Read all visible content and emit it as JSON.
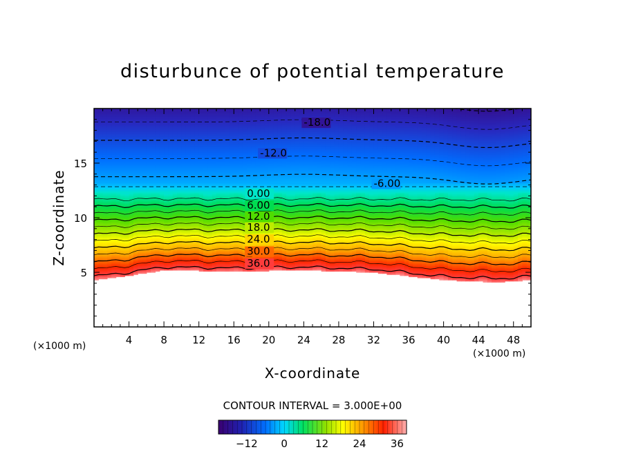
{
  "chart_data": {
    "type": "contour",
    "title": "disturbunce of potential temperature",
    "xlabel": "X-coordinate",
    "ylabel": "Z-coordinate",
    "x_unit": "(×1000 m)",
    "z_unit": "(×1000 m)",
    "xlim": [
      0,
      50
    ],
    "zlim": [
      0,
      20
    ],
    "x_ticks": [
      4,
      8,
      12,
      16,
      20,
      24,
      28,
      32,
      36,
      40,
      44,
      48
    ],
    "z_ticks": [
      5,
      10,
      15
    ],
    "contour_interval_text": "CONTOUR INTERVAL = 3.000E+00",
    "contour_interval": 3.0,
    "colorbar": {
      "range": [
        -21,
        39
      ],
      "ticks": [
        -12,
        0,
        12,
        24,
        36
      ]
    },
    "contour_labels": [
      {
        "text": "-18.0",
        "value": -18,
        "x": 24,
        "z": 18.6
      },
      {
        "text": "-12.0",
        "value": -12,
        "x": 19,
        "z": 15.8
      },
      {
        "text": "-6.00",
        "value": -6,
        "x": 32,
        "z": 13.0
      },
      {
        "text": "0.00",
        "value": 0,
        "x": 17.5,
        "z": 12.1
      },
      {
        "text": "6.00",
        "value": 6,
        "x": 17.5,
        "z": 11.0
      },
      {
        "text": "12.0",
        "value": 12,
        "x": 17.5,
        "z": 10.0
      },
      {
        "text": "18.0",
        "value": 18,
        "x": 17.5,
        "z": 9.0
      },
      {
        "text": "24.0",
        "value": 24,
        "x": 17.5,
        "z": 7.9
      },
      {
        "text": "30.0",
        "value": 30,
        "x": 17.5,
        "z": 6.8
      },
      {
        "text": "36.0",
        "value": 36,
        "x": 17.5,
        "z": 5.7
      }
    ],
    "lower_boundary_z": [
      [
        0,
        4.3
      ],
      [
        4,
        4.7
      ],
      [
        8,
        5.2
      ],
      [
        16,
        5.1
      ],
      [
        24,
        5.2
      ],
      [
        32,
        5.0
      ],
      [
        40,
        4.3
      ],
      [
        46,
        4.1
      ],
      [
        50,
        4.3
      ]
    ]
  }
}
